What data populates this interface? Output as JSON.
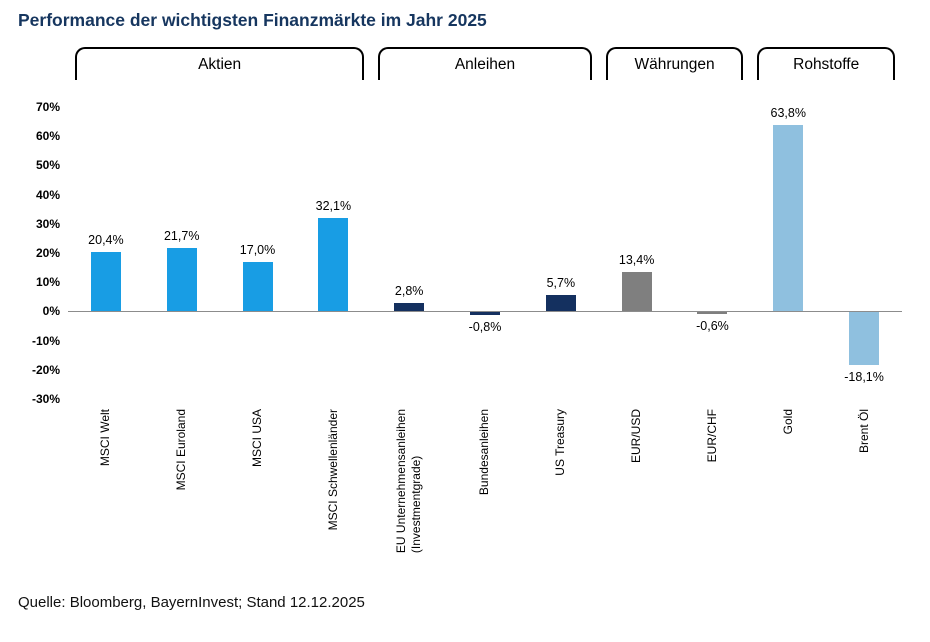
{
  "page": {
    "title": "Performance der wichtigsten Finanzmärkte im Jahr 2025",
    "source": "Quelle: Bloomberg, BayernInvest; Stand 12.12.2025"
  },
  "chart_data": {
    "type": "bar",
    "title": "Performance der wichtigsten Finanzmärkte im Jahr 2025",
    "xlabel": "",
    "ylabel": "",
    "ylim": [
      -30,
      70
    ],
    "grid": false,
    "legend": false,
    "yticks": [
      {
        "value": 70,
        "label": "70%"
      },
      {
        "value": 60,
        "label": "60%"
      },
      {
        "value": 50,
        "label": "50%"
      },
      {
        "value": 40,
        "label": "40%"
      },
      {
        "value": 30,
        "label": "30%"
      },
      {
        "value": 20,
        "label": "20%"
      },
      {
        "value": 10,
        "label": "10%"
      },
      {
        "value": 0,
        "label": "0%"
      },
      {
        "value": -10,
        "label": "-10%"
      },
      {
        "value": -20,
        "label": "-20%"
      },
      {
        "value": -30,
        "label": "-30%"
      }
    ],
    "groups": [
      {
        "label": "Aktien",
        "color": "#189de4",
        "bars": [
          {
            "label": "MSCI Welt",
            "value": 20.4,
            "value_label": "20,4%"
          },
          {
            "label": "MSCI Euroland",
            "value": 21.7,
            "value_label": "21,7%"
          },
          {
            "label": "MSCI USA",
            "value": 17.0,
            "value_label": "17,0%"
          },
          {
            "label": "MSCI Schwellenländer",
            "value": 32.1,
            "value_label": "32,1%"
          }
        ]
      },
      {
        "label": "Anleihen",
        "color": "#14305f",
        "bars": [
          {
            "label": "EU Unternehmensanleihen\n(Investmentgrade)",
            "value": 2.8,
            "value_label": "2,8%"
          },
          {
            "label": "Bundesanleihen",
            "value": -0.8,
            "value_label": "-0,8%"
          },
          {
            "label": "US Treasury",
            "value": 5.7,
            "value_label": "5,7%"
          }
        ]
      },
      {
        "label": "Währungen",
        "color": "#7f7f7f",
        "bars": [
          {
            "label": "EUR/USD",
            "value": 13.4,
            "value_label": "13,4%"
          },
          {
            "label": "EUR/CHF",
            "value": -0.6,
            "value_label": "-0,6%"
          }
        ]
      },
      {
        "label": "Rohstoffe",
        "color": "#8fc0df",
        "bars": [
          {
            "label": "Gold",
            "value": 63.8,
            "value_label": "63,8%"
          },
          {
            "label": "Brent Öl",
            "value": -18.1,
            "value_label": "-18,1%"
          }
        ]
      }
    ]
  }
}
